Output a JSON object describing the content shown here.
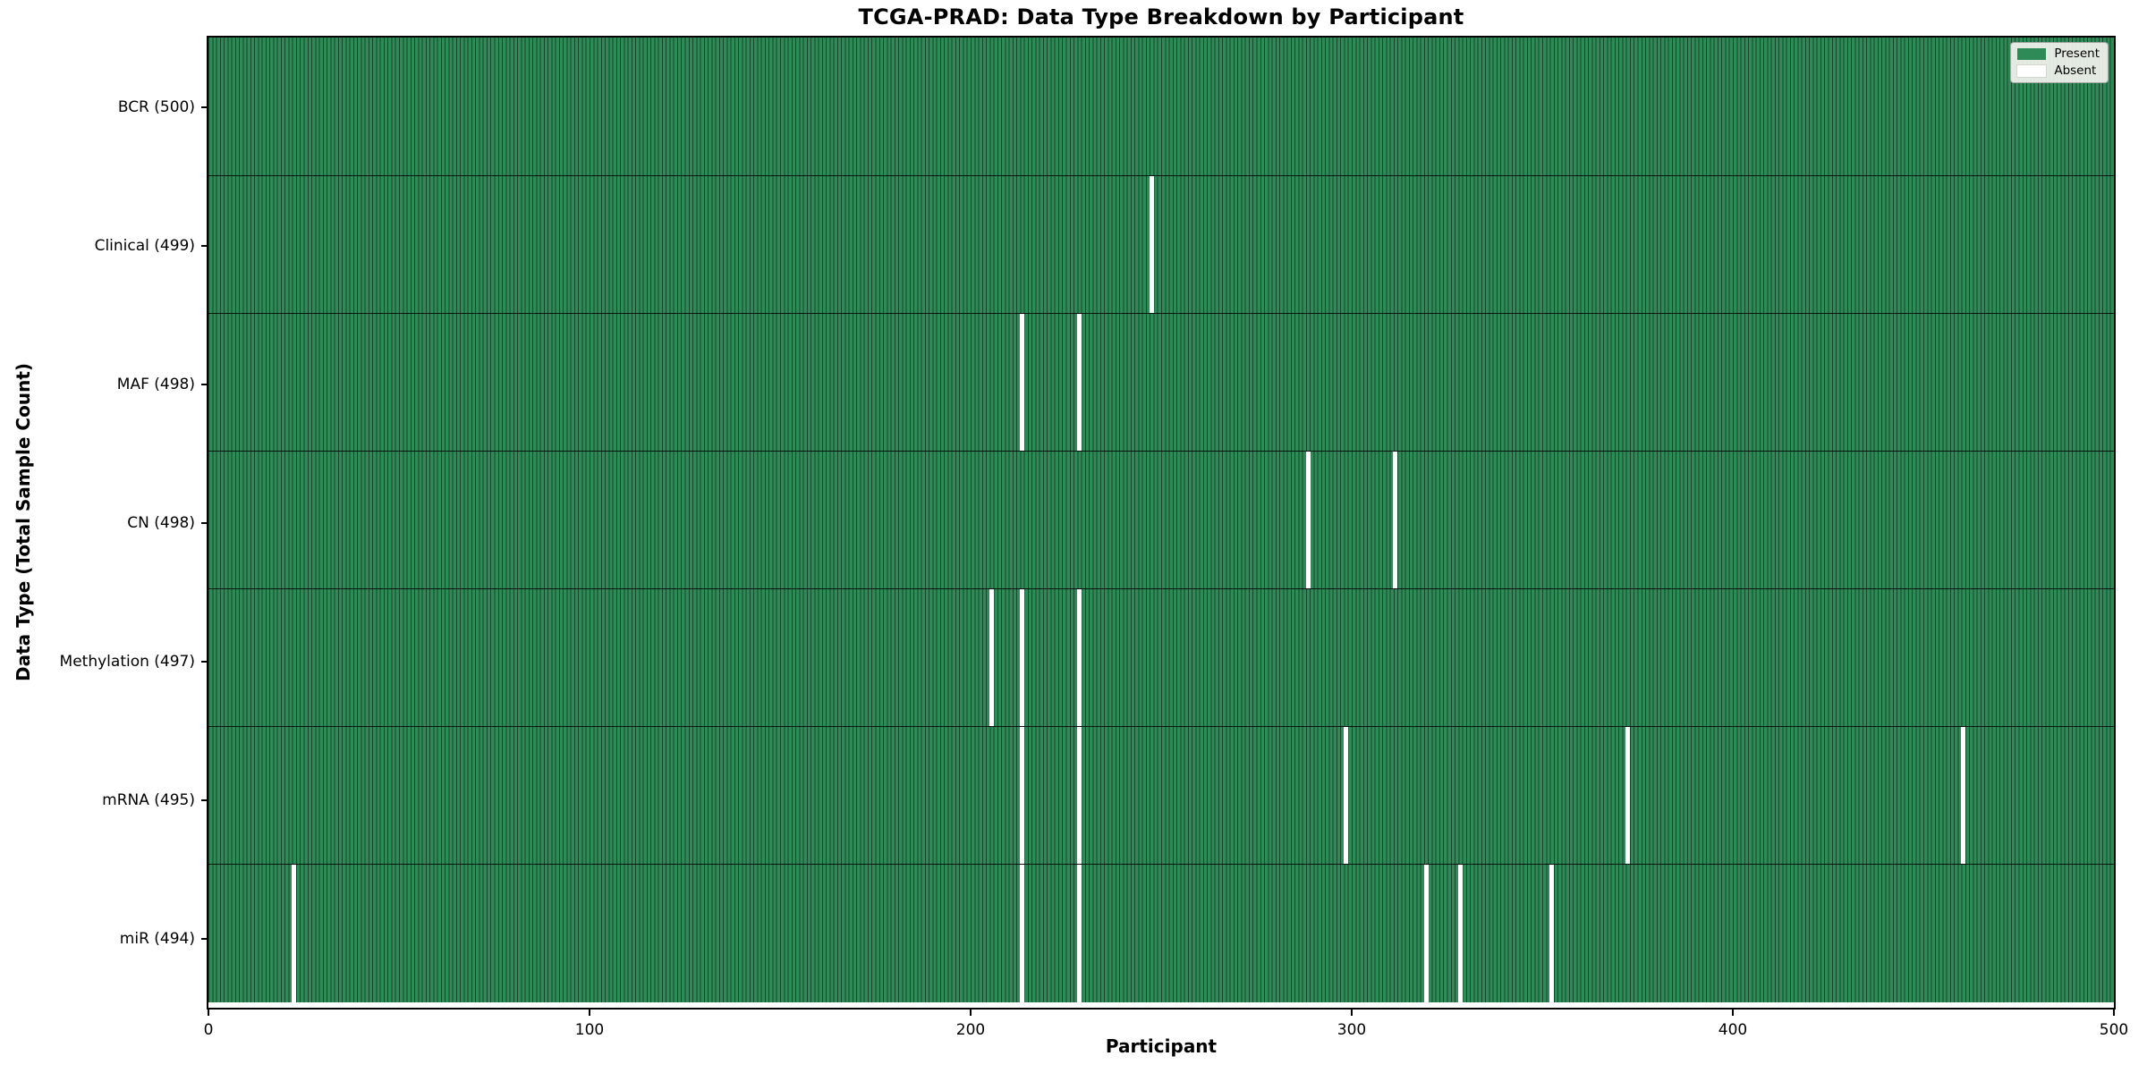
{
  "figure": {
    "title": "TCGA-PRAD: Data Type Breakdown by Participant",
    "xlabel": "Participant",
    "ylabel": "Data Type (Total Sample Count)"
  },
  "legend": {
    "position": "upper right",
    "items": [
      {
        "label": "Present",
        "color": "#2e8b57"
      },
      {
        "label": "Absent",
        "color": "#ffffff"
      }
    ]
  },
  "colors": {
    "present": "#2e8b57",
    "absent": "#ffffff",
    "cell_edge": "#1b4a31",
    "row_separator": "#000000",
    "plot_border": "#000000",
    "legend_background": "#f3f3ee"
  },
  "chart_data": {
    "type": "heatmap",
    "title": "TCGA-PRAD: Data Type Breakdown by Participant",
    "xlabel": "Participant",
    "ylabel": "Data Type (Total Sample Count)",
    "x_range": [
      0,
      500
    ],
    "x_ticks": [
      0,
      100,
      200,
      300,
      400,
      500
    ],
    "n_participants": 500,
    "grid": false,
    "legend_entries": [
      "Present",
      "Absent"
    ],
    "legend_position": "upper right",
    "value_colors": {
      "present": "#2e8b57",
      "absent": "#ffffff"
    },
    "rows": [
      {
        "label": "BCR (500)",
        "data_type": "BCR",
        "total": 500,
        "absent_participants": []
      },
      {
        "label": "Clinical (499)",
        "data_type": "Clinical",
        "total": 499,
        "absent_participants": [
          247
        ]
      },
      {
        "label": "MAF (498)",
        "data_type": "MAF",
        "total": 498,
        "absent_participants": [
          213,
          228
        ]
      },
      {
        "label": "CN (498)",
        "data_type": "CN",
        "total": 498,
        "absent_participants": [
          288,
          311
        ]
      },
      {
        "label": "Methylation (497)",
        "data_type": "Methylation",
        "total": 497,
        "absent_participants": [
          205,
          213,
          228
        ]
      },
      {
        "label": "mRNA (495)",
        "data_type": "mRNA",
        "total": 495,
        "absent_participants": [
          213,
          228,
          298,
          372,
          460
        ]
      },
      {
        "label": "miR (494)",
        "data_type": "miR",
        "total": 494,
        "absent_participants": [
          22,
          213,
          228,
          319,
          328,
          352
        ]
      }
    ]
  }
}
